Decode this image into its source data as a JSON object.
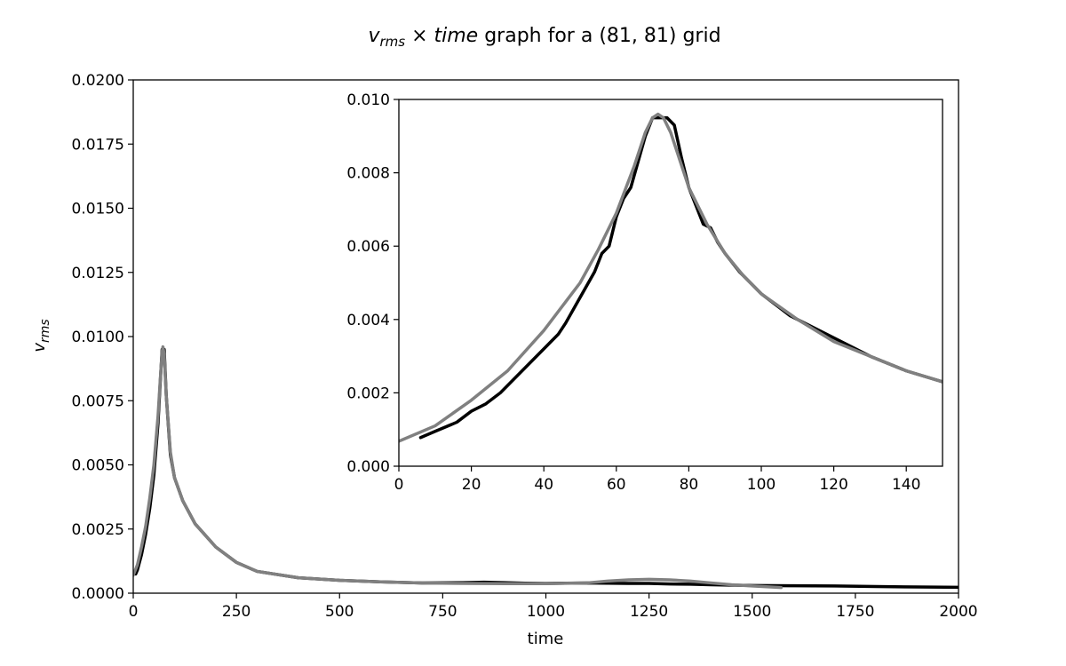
{
  "chart_data": [
    {
      "id": "main",
      "type": "line",
      "title": "v_rms × time graph for a (81, 81) grid",
      "title_parts": {
        "v": "v",
        "sub": "rms",
        "mult": " × ",
        "time": "time",
        "rest": " graph for a (81, 81) grid"
      },
      "xlabel": "time",
      "ylabel": "v_rms",
      "ylabel_parts": {
        "v": "v",
        "sub": "rms"
      },
      "xlim": [
        0,
        2000
      ],
      "ylim": [
        0,
        0.02
      ],
      "xticks": [
        0,
        250,
        500,
        750,
        1000,
        1250,
        1500,
        1750,
        2000
      ],
      "xtick_labels": [
        "0",
        "250",
        "500",
        "750",
        "1000",
        "1250",
        "1500",
        "1750",
        "2000"
      ],
      "yticks": [
        0,
        0.0025,
        0.005,
        0.0075,
        0.01,
        0.0125,
        0.015,
        0.0175,
        0.02
      ],
      "ytick_labels": [
        "0.0000",
        "0.0025",
        "0.0050",
        "0.0075",
        "0.0100",
        "0.0125",
        "0.0150",
        "0.0175",
        "0.0200"
      ],
      "grid": false,
      "series": [
        {
          "color": "#000000",
          "x": [
            6,
            10,
            20,
            30,
            40,
            50,
            60,
            65,
            70,
            75,
            80,
            90,
            100,
            120,
            150,
            200,
            250,
            300,
            400,
            500,
            600,
            700,
            800,
            850,
            900,
            950,
            1000,
            1050,
            1100,
            1150,
            1200,
            1250,
            1300,
            1350,
            1400,
            1500,
            1600,
            1700,
            1800,
            1900,
            2000
          ],
          "y": [
            0.00075,
            0.0009,
            0.0015,
            0.0023,
            0.0033,
            0.0046,
            0.0066,
            0.0081,
            0.0095,
            0.0095,
            0.0077,
            0.0054,
            0.0045,
            0.0036,
            0.0027,
            0.0018,
            0.0012,
            0.00085,
            0.0006,
            0.0005,
            0.00044,
            0.0004,
            0.00041,
            0.00043,
            0.00041,
            0.00039,
            0.00038,
            0.00039,
            0.0004,
            0.00039,
            0.00038,
            0.00038,
            0.00036,
            0.00035,
            0.00033,
            0.0003,
            0.00029,
            0.00028,
            0.00026,
            0.00024,
            0.00023
          ]
        },
        {
          "color": "#808080",
          "x": [
            0,
            10,
            20,
            30,
            40,
            50,
            60,
            65,
            70,
            72,
            75,
            80,
            90,
            100,
            120,
            150,
            200,
            250,
            300,
            400,
            500,
            600,
            700,
            800,
            900,
            1000,
            1100,
            1150,
            1200,
            1250,
            1300,
            1350,
            1400,
            1450,
            1500,
            1570
          ],
          "y": [
            0.0007,
            0.0011,
            0.0018,
            0.0026,
            0.0037,
            0.005,
            0.0069,
            0.0082,
            0.0094,
            0.0096,
            0.0093,
            0.0077,
            0.0055,
            0.0045,
            0.0036,
            0.0027,
            0.0018,
            0.0012,
            0.00085,
            0.0006,
            0.0005,
            0.00044,
            0.0004,
            0.00038,
            0.00037,
            0.00037,
            0.0004,
            0.00047,
            0.00052,
            0.00054,
            0.00052,
            0.00047,
            0.0004,
            0.00033,
            0.00028,
            0.00022
          ]
        }
      ]
    },
    {
      "id": "inset",
      "type": "line",
      "title": "",
      "xlabel": "",
      "ylabel": "",
      "xlim": [
        0,
        150
      ],
      "ylim": [
        0,
        0.01
      ],
      "xticks": [
        0,
        20,
        40,
        60,
        80,
        100,
        120,
        140
      ],
      "xtick_labels": [
        "0",
        "20",
        "40",
        "60",
        "80",
        "100",
        "120",
        "140"
      ],
      "yticks": [
        0,
        0.002,
        0.004,
        0.006,
        0.008,
        0.01
      ],
      "ytick_labels": [
        "0.000",
        "0.002",
        "0.004",
        "0.006",
        "0.008",
        "0.010"
      ],
      "grid": false,
      "series": [
        {
          "color": "#000000",
          "x": [
            6,
            10,
            16,
            20,
            24,
            28,
            32,
            36,
            38,
            40,
            44,
            46,
            50,
            54,
            56,
            58,
            60,
            62,
            64,
            66,
            68,
            70,
            74,
            76,
            78,
            80,
            82,
            84,
            86,
            88,
            90,
            94,
            98,
            100,
            104,
            108,
            110,
            120,
            130,
            140,
            150
          ],
          "y": [
            0.00078,
            0.00095,
            0.0012,
            0.0015,
            0.0017,
            0.002,
            0.0024,
            0.0028,
            0.003,
            0.0032,
            0.0036,
            0.0039,
            0.0046,
            0.0053,
            0.0058,
            0.006,
            0.0068,
            0.0073,
            0.0076,
            0.0083,
            0.009,
            0.0095,
            0.0095,
            0.0093,
            0.0084,
            0.0076,
            0.0071,
            0.0066,
            0.0065,
            0.0061,
            0.0058,
            0.0053,
            0.0049,
            0.0047,
            0.0044,
            0.0041,
            0.004,
            0.0035,
            0.003,
            0.0026,
            0.0023
          ]
        },
        {
          "color": "#808080",
          "x": [
            0,
            10,
            20,
            30,
            40,
            50,
            55,
            60,
            65,
            68,
            70,
            71.5,
            73,
            75,
            78,
            80,
            85,
            90,
            95,
            100,
            110,
            120,
            130,
            140,
            150
          ],
          "y": [
            0.00068,
            0.0011,
            0.0018,
            0.0026,
            0.0037,
            0.005,
            0.0059,
            0.0069,
            0.0082,
            0.0091,
            0.0095,
            0.0096,
            0.0095,
            0.0091,
            0.0082,
            0.0076,
            0.0066,
            0.0058,
            0.0052,
            0.0047,
            0.004,
            0.0034,
            0.003,
            0.0026,
            0.0023
          ]
        }
      ]
    }
  ]
}
